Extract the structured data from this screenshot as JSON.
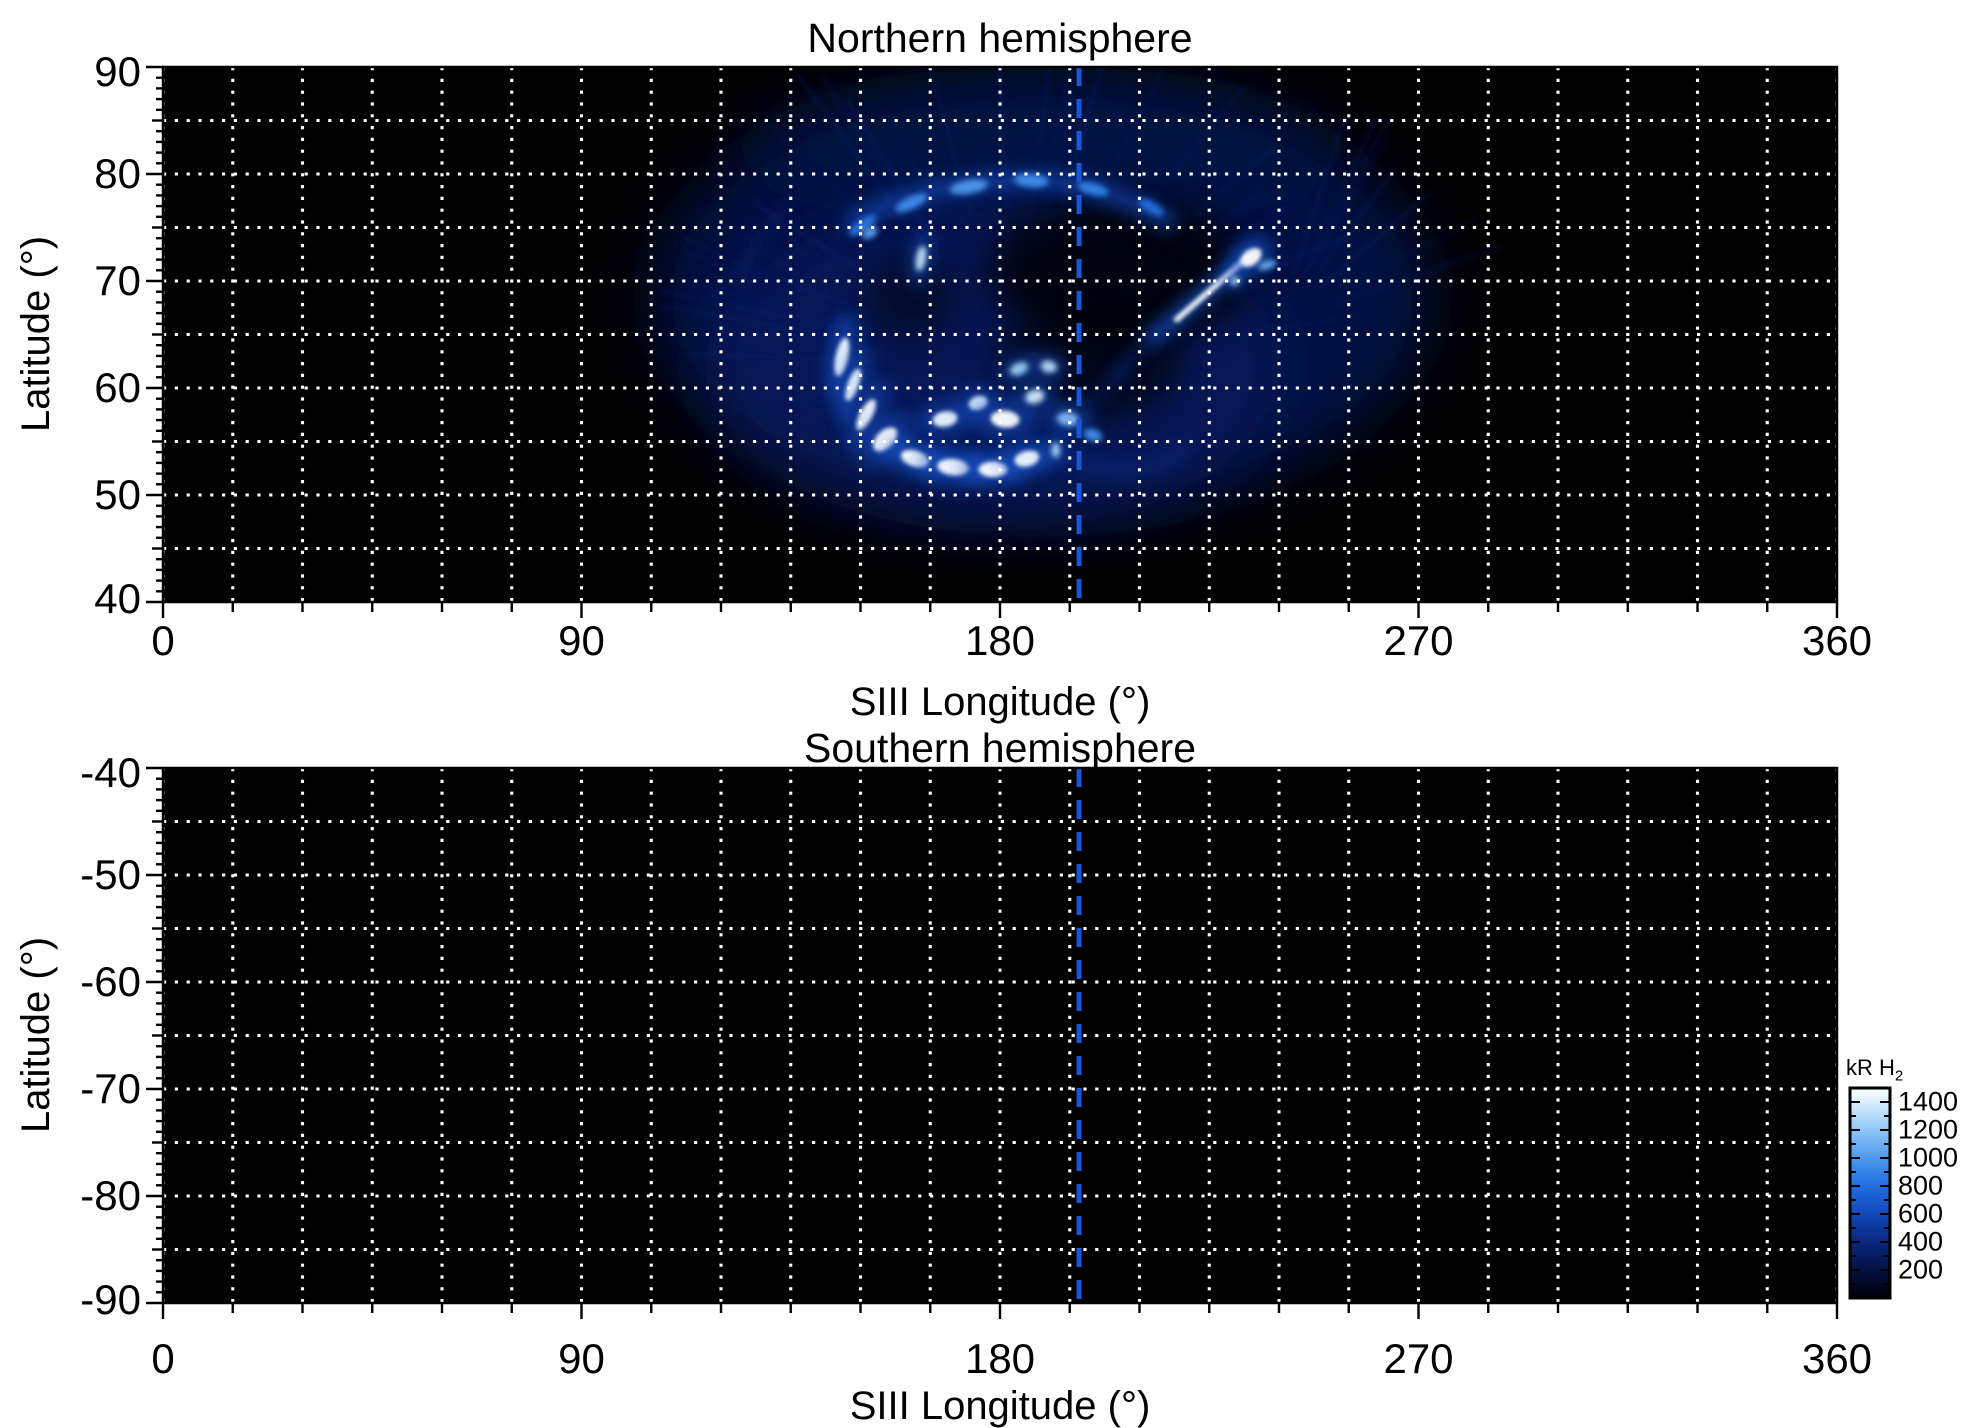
{
  "figure": {
    "background": "#ffffff",
    "grid_color": "#ffffff",
    "axis_color": "#000000",
    "reference_line_color": "#1a57d6"
  },
  "chart_data": {
    "type": "heatmap",
    "panels": [
      {
        "title": "Northern hemisphere",
        "xlabel": "SIII Longitude (°)",
        "ylabel": "Latitude (°)",
        "xlim": [
          0,
          360
        ],
        "ylim": [
          40,
          90
        ],
        "xticks": [
          0,
          90,
          180,
          270,
          360
        ],
        "xtick_minor_step": 15,
        "yticks": [
          90,
          80,
          70,
          60,
          50,
          40
        ],
        "ytick_minor_step": 1,
        "ytick_medium_step": 5,
        "grid": {
          "x_step": 15,
          "y_step": 5,
          "style": "dotted",
          "color": "#ffffff"
        },
        "reference_longitude": 197,
        "background_kR": 0,
        "emission": {
          "description": "Auroral oval spanning ~105-265 deg SIII longitude, ~48-86 deg latitude; bright (>1400 kR) patches near 145-195 deg / 52-63 deg and a bright streak near 215-235 deg / 65-73 deg",
          "glows": [
            {
              "lon": 189,
              "lat": 68.5,
              "w": 84,
              "h": 20.6,
              "kR": 260,
              "op": 0.8
            },
            {
              "lon": 178.5,
              "lat": 62,
              "w": 62,
              "h": 15.4,
              "kR": 330,
              "op": 0.55
            },
            {
              "lon": 189,
              "lat": 82.5,
              "w": 64,
              "h": 5.6,
              "kR": 210,
              "op": 0.6
            }
          ],
          "dark_holes": [
            {
              "lon": 205.4,
              "lat": 70.8,
              "w": 28,
              "h": 7.0,
              "op": 0.8
            },
            {
              "lon": 198.9,
              "lat": 62.0,
              "w": 20,
              "h": 5.1,
              "op": 0.65
            },
            {
              "lon": 161.0,
              "lat": 68.5,
              "w": 10,
              "h": 4.0,
              "op": 0.5
            }
          ],
          "bands": [
            {
              "pts": [
                [
                  148.5,
                  75.5
                ],
                [
                  155,
                  77
                ],
                [
                  166,
                  78.5
                ],
                [
                  178,
                  79.3
                ],
                [
                  190,
                  79.4
                ],
                [
                  200,
                  78.7
                ],
                [
                  209,
                  77.2
                ],
                [
                  216,
                  75.6
                ]
              ],
              "w": 1.8,
              "kR": 600,
              "op": 0.65
            },
            {
              "pts": [
                [
                  146,
                  66
                ],
                [
                  144.5,
                  63
                ],
                [
                  145,
                  60
                ],
                [
                  147,
                  57.5
                ]
              ],
              "w": 1.5,
              "kR": 450,
              "op": 0.55
            },
            {
              "pts": [
                [
                  155,
                  55
                ],
                [
                  163,
                  53.3
                ],
                [
                  172,
                  52.6
                ],
                [
                  181,
                  52.6
                ],
                [
                  189,
                  53.6
                ]
              ],
              "w": 1.6,
              "kR": 700,
              "op": 0.6
            },
            {
              "pts": [
                [
                  192,
                  54.5
                ],
                [
                  199,
                  52.8
                ],
                [
                  207,
                  52.2
                ],
                [
                  214,
                  52.8
                ],
                [
                  220,
                  54.2
                ]
              ],
              "w": 1.4,
              "kR": 420,
              "op": 0.45
            },
            {
              "pts": [
                [
                  213,
                  64.8
                ],
                [
                  226,
                  69.5
                ],
                [
                  234.4,
                  73
                ]
              ],
              "w": 1.5,
              "kR": 650,
              "op": 0.8
            },
            {
              "pts": [
                [
                  218,
                  66.4
                ],
                [
                  227,
                  69.8
                ],
                [
                  233.5,
                  72.3
                ]
              ],
              "w": 0.55,
              "kR": 1480,
              "op": 0.95,
              "bl": 2
            },
            {
              "pts": [
                [
                  204.5,
                  61
                ],
                [
                  213,
                  64.8
                ]
              ],
              "w": 0.9,
              "kR": 450,
              "op": 0.6
            },
            {
              "pts": [
                [
                  193,
                  57
                ],
                [
                  200,
                  59
                ],
                [
                  207,
                  61.5
                ]
              ],
              "w": 1.0,
              "kR": 380,
              "op": 0.5
            },
            {
              "pts": [
                [
                  124,
                  70
                ],
                [
                  128,
                  74
                ],
                [
                  134,
                  77
                ]
              ],
              "w": 1.2,
              "kR": 300,
              "op": 0.5
            }
          ],
          "patches": [
            {
              "lon": 150.5,
              "lat": 75.2,
              "w": 4.3,
              "h": 0.65,
              "rot": -35,
              "kR": 850
            },
            {
              "lon": 160.9,
              "lat": 77.3,
              "w": 4.7,
              "h": 0.7,
              "rot": -25,
              "kR": 950
            },
            {
              "lon": 173.3,
              "lat": 78.8,
              "w": 5.2,
              "h": 0.8,
              "rot": -10,
              "kR": 1000
            },
            {
              "lon": 186.7,
              "lat": 79.4,
              "w": 4.7,
              "h": 0.8,
              "rot": 5,
              "kR": 950
            },
            {
              "lon": 200.0,
              "lat": 78.6,
              "w": 4.3,
              "h": 0.7,
              "rot": 15,
              "kR": 900
            },
            {
              "lon": 212.5,
              "lat": 76.9,
              "w": 3.9,
              "h": 0.65,
              "rot": 30,
              "kR": 800
            },
            {
              "lon": 163.0,
              "lat": 72.1,
              "w": 1.3,
              "h": 1.5,
              "rot": 10,
              "kR": 1350
            },
            {
              "lon": 152.0,
              "lat": 74.5,
              "w": 2.2,
              "h": 0.6,
              "rot": -30,
              "kR": 1050
            },
            {
              "lon": 146.0,
              "lat": 62.9,
              "w": 1.7,
              "h": 2.3,
              "rot": 12,
              "kR": 1450
            },
            {
              "lon": 148.4,
              "lat": 60.3,
              "w": 1.5,
              "h": 2.0,
              "rot": 20,
              "kR": 1420
            },
            {
              "lon": 151.2,
              "lat": 57.5,
              "w": 1.7,
              "h": 2.0,
              "rot": 28,
              "kR": 1460
            },
            {
              "lon": 155.3,
              "lat": 55.2,
              "w": 2.3,
              "h": 1.7,
              "rot": 45,
              "kR": 1500
            },
            {
              "lon": 161.7,
              "lat": 53.4,
              "w": 3.9,
              "h": 0.9,
              "rot": 18,
              "kR": 1500
            },
            {
              "lon": 169.9,
              "lat": 52.6,
              "w": 4.3,
              "h": 0.95,
              "rot": 6,
              "kR": 1480
            },
            {
              "lon": 178.5,
              "lat": 52.4,
              "w": 3.9,
              "h": 0.9,
              "rot": 0,
              "kR": 1500
            },
            {
              "lon": 185.8,
              "lat": 53.4,
              "w": 3.4,
              "h": 0.9,
              "rot": -14,
              "kR": 1460
            },
            {
              "lon": 192.0,
              "lat": 54.2,
              "w": 1.1,
              "h": 0.9,
              "rot": 0,
              "kR": 1300
            },
            {
              "lon": 168.2,
              "lat": 57.1,
              "w": 3.4,
              "h": 0.9,
              "rot": -10,
              "kR": 1450
            },
            {
              "lon": 175.3,
              "lat": 58.6,
              "w": 2.6,
              "h": 0.8,
              "rot": -18,
              "kR": 1400
            },
            {
              "lon": 181.1,
              "lat": 57.1,
              "w": 3.9,
              "h": 1.0,
              "rot": 4,
              "kR": 1500
            },
            {
              "lon": 187.5,
              "lat": 59.2,
              "w": 2.6,
              "h": 0.8,
              "rot": -14,
              "kR": 1380
            },
            {
              "lon": 184.1,
              "lat": 61.8,
              "w": 2.6,
              "h": 0.7,
              "rot": -22,
              "kR": 1250
            },
            {
              "lon": 190.5,
              "lat": 62.0,
              "w": 2.2,
              "h": 0.7,
              "rot": 14,
              "kR": 1300
            },
            {
              "lon": 194.6,
              "lat": 57.1,
              "w": 3.0,
              "h": 0.8,
              "rot": 8,
              "kR": 1150
            },
            {
              "lon": 200.0,
              "lat": 55.6,
              "w": 2.6,
              "h": 0.7,
              "rot": 18,
              "kR": 950
            },
            {
              "lon": 234.0,
              "lat": 72.2,
              "w": 3.2,
              "h": 0.9,
              "rot": -38,
              "kR": 1500
            },
            {
              "lon": 237.4,
              "lat": 71.5,
              "w": 2.6,
              "h": 0.5,
              "rot": -15,
              "kR": 1100
            },
            {
              "lon": 230.5,
              "lat": 70.0,
              "w": 1.3,
              "h": 0.5,
              "rot": -40,
              "kR": 1250
            }
          ],
          "texture_streaks": [
            {
              "lon": 183,
              "lat": 62,
              "r1": 34,
              "r2": 74,
              "a0": -190,
              "a1": -10,
              "n": 26,
              "kR": 330
            },
            {
              "lon": 240,
              "lat": 66,
              "r1": 13,
              "r2": 48,
              "a0": -85,
              "a1": -25,
              "n": 9,
              "kR": 300
            },
            {
              "lon": 150,
              "lat": 66,
              "r1": 18,
              "r2": 40,
              "a0": -180,
              "a1": -120,
              "n": 8,
              "kR": 280
            }
          ]
        }
      },
      {
        "title": "Southern hemisphere",
        "xlabel": "SIII Longitude (°)",
        "ylabel": "Latitude (°)",
        "xlim": [
          0,
          360
        ],
        "ylim": [
          -90,
          -40
        ],
        "xticks": [
          0,
          90,
          180,
          270,
          360
        ],
        "xtick_minor_step": 15,
        "yticks": [
          -40,
          -50,
          -60,
          -70,
          -80,
          -90
        ],
        "ytick_minor_step": 1,
        "ytick_medium_step": 5,
        "grid": {
          "x_step": 15,
          "y_step": 5,
          "style": "dotted",
          "color": "#ffffff"
        },
        "reference_longitude": 197,
        "background_kR": 0,
        "emission": {
          "description": "No visible emission (panel entirely dark)",
          "glows": [],
          "dark_holes": [],
          "bands": [],
          "patches": [],
          "texture_streaks": []
        }
      }
    ],
    "colorbar": {
      "label": "kR H",
      "label_sub": "2",
      "ticks": [
        1400,
        1200,
        1000,
        800,
        600,
        400,
        200
      ],
      "minor_tick_step": 100,
      "range": [
        0,
        1500
      ],
      "orientation": "vertical",
      "position": "right of southern panel"
    }
  }
}
